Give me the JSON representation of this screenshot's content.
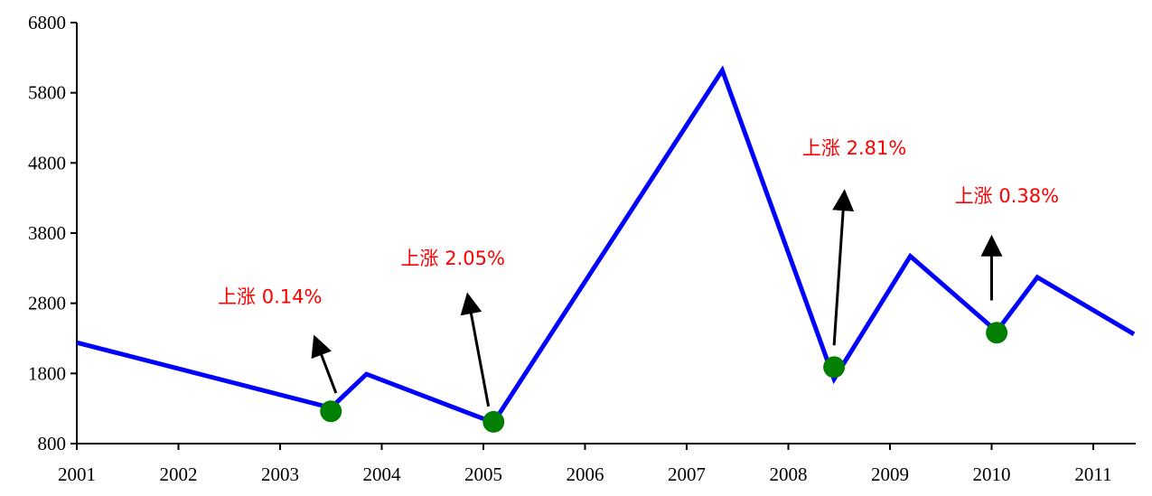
{
  "chart_data": {
    "type": "line",
    "title": "",
    "xlabel": "",
    "ylabel": "",
    "ylim": [
      800,
      6800
    ],
    "xlim": [
      2001,
      2011.4
    ],
    "yticks": [
      800,
      1800,
      2800,
      3800,
      4800,
      5800,
      6800
    ],
    "xticks": [
      "2001",
      "2002",
      "2003",
      "2004",
      "2005",
      "2006",
      "2007",
      "2008",
      "2009",
      "2010",
      "2011"
    ],
    "grid": false,
    "legend": "none",
    "line_color": "#0000ff",
    "series": [
      {
        "points": [
          {
            "x": 2001.0,
            "y": 2240
          },
          {
            "x": 2003.5,
            "y": 1310
          },
          {
            "x": 2003.85,
            "y": 1790
          },
          {
            "x": 2005.1,
            "y": 1100
          },
          {
            "x": 2007.35,
            "y": 6120
          },
          {
            "x": 2008.45,
            "y": 1720
          },
          {
            "x": 2009.2,
            "y": 3470
          },
          {
            "x": 2010.05,
            "y": 2400
          },
          {
            "x": 2010.45,
            "y": 3170
          },
          {
            "x": 2011.4,
            "y": 2360
          }
        ]
      }
    ],
    "markers": [
      {
        "x": 2003.5,
        "y": 1260,
        "color": "#007f00"
      },
      {
        "x": 2005.1,
        "y": 1110,
        "color": "#007f00"
      },
      {
        "x": 2008.45,
        "y": 1890,
        "color": "#007f00"
      },
      {
        "x": 2010.05,
        "y": 2380,
        "color": "#007f00"
      }
    ],
    "arrows": [
      {
        "from": {
          "x": 2003.55,
          "y": 1520
        },
        "to": {
          "x": 2003.35,
          "y": 2280
        }
      },
      {
        "from": {
          "x": 2005.05,
          "y": 1330
        },
        "to": {
          "x": 2004.85,
          "y": 2880
        }
      },
      {
        "from": {
          "x": 2008.45,
          "y": 2200
        },
        "to": {
          "x": 2008.55,
          "y": 4350
        }
      },
      {
        "from": {
          "x": 2010.0,
          "y": 2840
        },
        "to": {
          "x": 2010.0,
          "y": 3700
        }
      }
    ],
    "annotations": [
      {
        "text": "上涨 0.14%",
        "x": 2002.9,
        "y": 2800
      },
      {
        "text": "上涨 2.05%",
        "x": 2004.7,
        "y": 3350
      },
      {
        "text": "上涨 2.81%",
        "x": 2008.65,
        "y": 4920
      },
      {
        "text": "上涨 0.38%",
        "x": 2010.15,
        "y": 4240
      }
    ]
  }
}
